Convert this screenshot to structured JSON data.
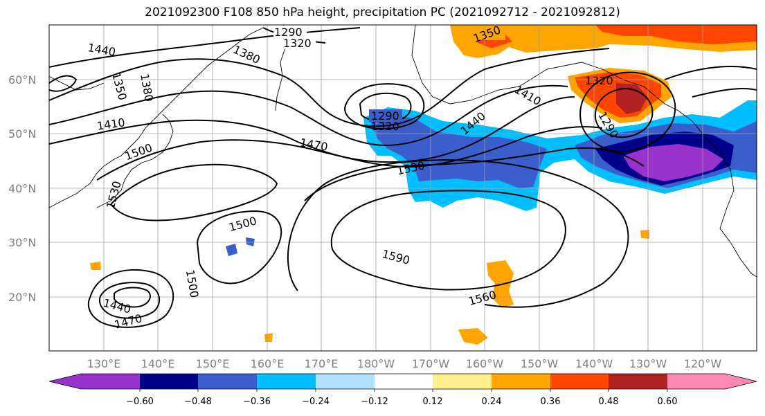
{
  "title": "2021092300 F108 850 hPa height, precipitation PC (2021092712 - 2021092812)",
  "lat_labels": [
    "60°N",
    "50°N",
    "40°N",
    "30°N",
    "20°N"
  ],
  "lon_labels": [
    "130°E",
    "140°E",
    "150°E",
    "160°E",
    "170°E",
    "180°W",
    "170°W",
    "160°W",
    "150°W",
    "140°W",
    "130°W",
    "120°W"
  ],
  "contour_labels": [
    "1290",
    "1320",
    "1350",
    "1380",
    "1410",
    "1440",
    "1470",
    "1500",
    "1530",
    "1560",
    "1590"
  ],
  "colorbar": {
    "colors": [
      "#9932cc",
      "#00008b",
      "#3a5fcd",
      "#00bfff",
      "#b0e0ff",
      "#ffffff",
      "#fff08c",
      "#ffa500",
      "#ff4500",
      "#b22222",
      "#ff89b4"
    ],
    "tick_labels": [
      "−0.60",
      "−0.48",
      "−0.36",
      "−0.24",
      "−0.12",
      "0.12",
      "0.24",
      "0.36",
      "0.48",
      "0.60"
    ]
  }
}
